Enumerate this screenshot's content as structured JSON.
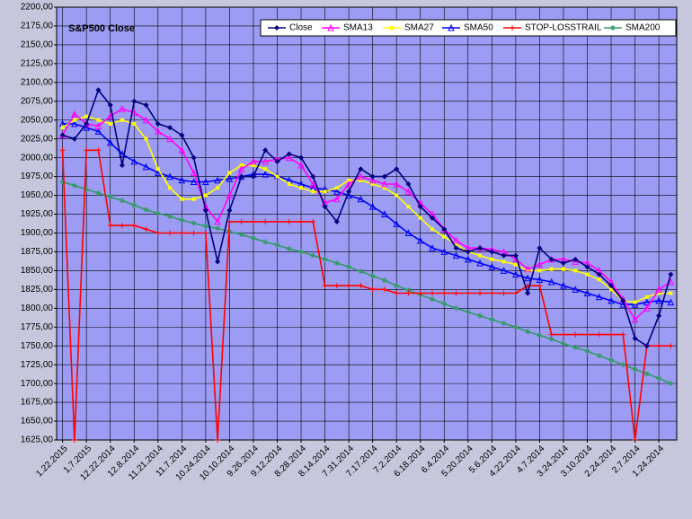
{
  "chart_data": {
    "type": "line",
    "title": "S&P500 Close",
    "categories": [
      "1.22.2015",
      null,
      "1.7.2015",
      null,
      "12.22.2014",
      null,
      "12.8.2014",
      null,
      "11.21.2014",
      null,
      "11.7.2014",
      null,
      "10.24.2014",
      null,
      "10.10.2014",
      null,
      "9.26.2014",
      null,
      "9.12.2014",
      null,
      "8.28.2014",
      null,
      "8.14.2014",
      null,
      "7.31.2014",
      null,
      "7.17.2014",
      null,
      "7.2.2014",
      null,
      "6.18.2014",
      null,
      "6.4.2014",
      null,
      "5.20.2014",
      null,
      "5.6.2014",
      null,
      "4.22.2014",
      null,
      "4.7.2014",
      null,
      "3.24.2014",
      null,
      "3.10.2014",
      null,
      "2.24.2014",
      null,
      "2.7.2014",
      null,
      "1.24.2014",
      null
    ],
    "ylim": [
      1625,
      2200
    ],
    "yticks": [
      {
        "value": 1625,
        "label": "1625,00"
      },
      {
        "value": 1650,
        "label": "1650,00"
      },
      {
        "value": 1675,
        "label": "1675,00"
      },
      {
        "value": 1700,
        "label": "1700,00"
      },
      {
        "value": 1725,
        "label": "1725,00"
      },
      {
        "value": 1750,
        "label": "1750,00"
      },
      {
        "value": 1775,
        "label": "1775,00"
      },
      {
        "value": 1800,
        "label": "1800,00"
      },
      {
        "value": 1825,
        "label": "1825,00"
      },
      {
        "value": 1850,
        "label": "1850,00"
      },
      {
        "value": 1875,
        "label": "1875,00"
      },
      {
        "value": 1900,
        "label": "1900,00"
      },
      {
        "value": 1925,
        "label": "1925,00"
      },
      {
        "value": 1950,
        "label": "1950,00"
      },
      {
        "value": 1975,
        "label": "1975,00"
      },
      {
        "value": 2000,
        "label": "2000,00"
      },
      {
        "value": 2025,
        "label": "2025,00"
      },
      {
        "value": 2050,
        "label": "2050,00"
      },
      {
        "value": 2075,
        "label": "2075,00"
      },
      {
        "value": 2100,
        "label": "2100,00"
      },
      {
        "value": 2125,
        "label": "2125,00"
      },
      {
        "value": 2150,
        "label": "2150,00"
      },
      {
        "value": 2175,
        "label": "2175,00"
      },
      {
        "value": 2200,
        "label": "2200,00"
      }
    ],
    "grid": true,
    "legend": "top-right",
    "series": [
      {
        "name": "Close",
        "color": "#000080",
        "marker": "diamond",
        "values": [
          2030,
          2025,
          2045,
          2090,
          2070,
          1990,
          2075,
          2070,
          2045,
          2040,
          2030,
          2000,
          1930,
          1862,
          1930,
          1975,
          1975,
          2010,
          1995,
          2005,
          2000,
          1975,
          1935,
          1915,
          1955,
          1985,
          1975,
          1975,
          1985,
          1965,
          1935,
          1920,
          1905,
          1880,
          1875,
          1880,
          1875,
          1870,
          1870,
          1820,
          1880,
          1865,
          1860,
          1865,
          1855,
          1845,
          1830,
          1810,
          1760,
          1750,
          1790,
          1845
        ]
      },
      {
        "name": "SMA13",
        "color": "#ff00ff",
        "marker": "triangle",
        "values": [
          2030,
          2058,
          2045,
          2042,
          2055,
          2065,
          2060,
          2050,
          2035,
          2025,
          2010,
          1980,
          1935,
          1915,
          1950,
          1985,
          1995,
          1995,
          1998,
          2000,
          1990,
          1965,
          1940,
          1945,
          1965,
          1975,
          1970,
          1965,
          1965,
          1955,
          1940,
          1925,
          1905,
          1890,
          1880,
          1880,
          1878,
          1875,
          1865,
          1852,
          1858,
          1865,
          1865,
          1862,
          1860,
          1850,
          1835,
          1812,
          1785,
          1800,
          1825,
          1835
        ]
      },
      {
        "name": "SMA27",
        "color": "#ffff00",
        "marker": "square",
        "values": [
          2040,
          2050,
          2055,
          2050,
          2045,
          2050,
          2045,
          2025,
          1985,
          1960,
          1945,
          1945,
          1950,
          1960,
          1980,
          1990,
          1990,
          1985,
          1975,
          1965,
          1960,
          1955,
          1955,
          1960,
          1970,
          1970,
          1965,
          1960,
          1950,
          1935,
          1920,
          1905,
          1895,
          1885,
          1875,
          1870,
          1865,
          1862,
          1858,
          1850,
          1850,
          1852,
          1852,
          1850,
          1845,
          1838,
          1825,
          1810,
          1808,
          1815,
          1820,
          1820
        ]
      },
      {
        "name": "SMA50",
        "color": "#0000ff",
        "marker": "triangle",
        "values": [
          2045,
          2045,
          2040,
          2035,
          2020,
          2005,
          1995,
          1988,
          1980,
          1975,
          1970,
          1968,
          1968,
          1970,
          1972,
          1975,
          1978,
          1978,
          1976,
          1970,
          1965,
          1960,
          1958,
          1955,
          1950,
          1945,
          1935,
          1925,
          1912,
          1900,
          1890,
          1880,
          1875,
          1870,
          1865,
          1860,
          1855,
          1850,
          1845,
          1840,
          1838,
          1835,
          1830,
          1825,
          1820,
          1815,
          1810,
          1805,
          1805,
          1808,
          1810,
          1808
        ]
      },
      {
        "name": "STOP-LOSSTRAIL",
        "color": "#ff0000",
        "marker": "plus",
        "values": [
          2010,
          1625,
          2010,
          2010,
          1910,
          1910,
          1910,
          1905,
          1900,
          1900,
          1900,
          1900,
          1900,
          1625,
          1915,
          1915,
          1915,
          1915,
          1915,
          1915,
          1915,
          1915,
          1830,
          1830,
          1830,
          1830,
          1825,
          1825,
          1820,
          1820,
          1820,
          1820,
          1820,
          1820,
          1820,
          1820,
          1820,
          1820,
          1820,
          1830,
          1830,
          1765,
          1765,
          1765,
          1765,
          1765,
          1765,
          1765,
          1625,
          1750,
          1750,
          1750
        ]
      },
      {
        "name": "SMA200",
        "color": "#339966",
        "marker": "star",
        "values": [
          1968,
          1963,
          1958,
          1953,
          1948,
          1943,
          1937,
          1931,
          1926,
          1922,
          1917,
          1913,
          1909,
          1906,
          1902,
          1898,
          1893,
          1888,
          1884,
          1879,
          1875,
          1870,
          1865,
          1860,
          1855,
          1849,
          1843,
          1837,
          1830,
          1824,
          1818,
          1812,
          1806,
          1800,
          1795,
          1790,
          1785,
          1780,
          1775,
          1769,
          1764,
          1759,
          1753,
          1748,
          1743,
          1737,
          1731,
          1725,
          1719,
          1713,
          1707,
          1700
        ]
      }
    ]
  }
}
